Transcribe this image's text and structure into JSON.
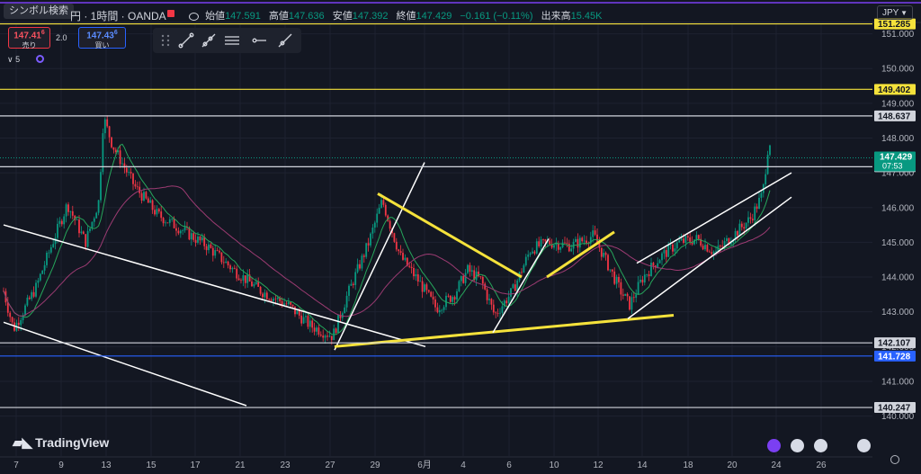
{
  "header": {
    "search_label": "シンボル検索",
    "title": "円 · 1時間 · OANDA",
    "ohlc": [
      {
        "label": "始値",
        "value": "147.591"
      },
      {
        "label": "高値",
        "value": "147.636"
      },
      {
        "label": "安値",
        "value": "147.392"
      },
      {
        "label": "終値",
        "value": "147.429"
      },
      {
        "label": "",
        "value": "−0.161 (−0.11%)"
      },
      {
        "label": "出来高",
        "value": "15.45K"
      }
    ],
    "currency": "JPY"
  },
  "trade": {
    "sell_price": "147.41",
    "sell_price_sup": "6",
    "sell_label": "売り",
    "buy_price": "147.43",
    "buy_price_sup": "6",
    "buy_label": "買い",
    "spread": "2.0"
  },
  "indicator_toggle": "5",
  "logo_text": "TradingView",
  "colors": {
    "background": "#131722",
    "grid": "#1e2230",
    "up": "#089981",
    "down": "#f23645",
    "ma_fast": "#26a65b",
    "ma_slow": "#9c3b72",
    "trend_white": "#ffffff",
    "trend_yellow": "#f5e23b",
    "hline_yellow": "#f5e23b",
    "hline_blue": "#2962ff",
    "hline_white": "#d1d4dc",
    "current_price": "#089981"
  },
  "icons": [
    "drag-handle-icon",
    "trendline-icon",
    "ray-icon",
    "parallel-channel-icon",
    "horizontal-ray-icon",
    "extended-line-icon",
    "flash-icon",
    "us-flag-icon",
    "settings-icon"
  ],
  "chart_data": {
    "type": "candlestick",
    "x_ticks": [
      "7",
      "9",
      "13",
      "15",
      "17",
      "21",
      "23",
      "27",
      "29",
      "6月",
      "4",
      "6",
      "10",
      "12",
      "14",
      "18",
      "20",
      "24",
      "26"
    ],
    "y_ticks": [
      "140.000",
      "141.000",
      "142.000",
      "143.000",
      "144.000",
      "145.000",
      "146.000",
      "147.000",
      "148.000",
      "149.000",
      "150.000",
      "151.000"
    ],
    "ylim": [
      139.86,
      151.3
    ],
    "price_anchor": [
      [
        0,
        144.0
      ],
      [
        15,
        142.5
      ],
      [
        40,
        143.7
      ],
      [
        60,
        145.1
      ],
      [
        75,
        146.1
      ],
      [
        95,
        145.0
      ],
      [
        110,
        146.2
      ],
      [
        115,
        148.6
      ],
      [
        125,
        147.8
      ],
      [
        150,
        146.6
      ],
      [
        175,
        145.8
      ],
      [
        200,
        145.4
      ],
      [
        230,
        144.9
      ],
      [
        260,
        144.2
      ],
      [
        290,
        143.6
      ],
      [
        320,
        143.2
      ],
      [
        345,
        142.6
      ],
      [
        370,
        142.3
      ],
      [
        385,
        143.4
      ],
      [
        410,
        145.0
      ],
      [
        425,
        146.2
      ],
      [
        445,
        144.6
      ],
      [
        465,
        143.9
      ],
      [
        485,
        143.1
      ],
      [
        505,
        143.5
      ],
      [
        520,
        144.2
      ],
      [
        535,
        143.9
      ],
      [
        550,
        142.9
      ],
      [
        570,
        143.6
      ],
      [
        590,
        144.8
      ],
      [
        610,
        145.0
      ],
      [
        635,
        144.9
      ],
      [
        660,
        145.2
      ],
      [
        675,
        144.4
      ],
      [
        690,
        143.6
      ],
      [
        700,
        143.2
      ],
      [
        715,
        144.0
      ],
      [
        735,
        144.6
      ],
      [
        755,
        145.0
      ],
      [
        775,
        145.1
      ],
      [
        795,
        144.7
      ],
      [
        815,
        145.2
      ],
      [
        835,
        145.7
      ],
      [
        848,
        146.4
      ],
      [
        855,
        148.0
      ],
      [
        860,
        147.43
      ]
    ],
    "horizontal_lines": [
      {
        "price": 151.285,
        "label": "151.285",
        "color": "#f5e23b"
      },
      {
        "price": 149.402,
        "label": "149.402",
        "color": "#f5e23b"
      },
      {
        "price": 148.637,
        "label": "148.637",
        "color": "#d1d4dc"
      },
      {
        "price": 147.175,
        "label": "147.175",
        "color": "#d1d4dc"
      },
      {
        "price": 142.107,
        "label": "142.107",
        "color": "#d1d4dc"
      },
      {
        "price": 141.728,
        "label": "141.728",
        "color": "#2962ff"
      },
      {
        "price": 140.247,
        "label": "140.247",
        "color": "#d1d4dc"
      }
    ],
    "trend_lines": [
      {
        "color": "#ffffff",
        "x1": 4,
        "p1": 145.5,
        "x2": 473,
        "p2": 142.0
      },
      {
        "color": "#ffffff",
        "x1": 4,
        "p1": 142.7,
        "x2": 274,
        "p2": 140.3
      },
      {
        "color": "#ffffff",
        "x1": 372,
        "p1": 141.9,
        "x2": 472,
        "p2": 147.3
      },
      {
        "color": "#f5e23b",
        "x1": 372,
        "p1": 142.0,
        "x2": 749,
        "p2": 142.9
      },
      {
        "color": "#f5e23b",
        "x1": 420,
        "p1": 146.4,
        "x2": 580,
        "p2": 144.0
      },
      {
        "color": "#f5e23b",
        "x1": 608,
        "p1": 144.0,
        "x2": 683,
        "p2": 145.3
      },
      {
        "color": "#ffffff",
        "x1": 548,
        "p1": 142.4,
        "x2": 610,
        "p2": 145.1
      },
      {
        "color": "#ffffff",
        "x1": 708,
        "p1": 144.4,
        "x2": 880,
        "p2": 147.0
      },
      {
        "color": "#ffffff",
        "x1": 698,
        "p1": 142.8,
        "x2": 880,
        "p2": 146.3
      }
    ],
    "last_price": {
      "price": 147.429,
      "label": "147.429",
      "countdown": "07:53"
    }
  }
}
